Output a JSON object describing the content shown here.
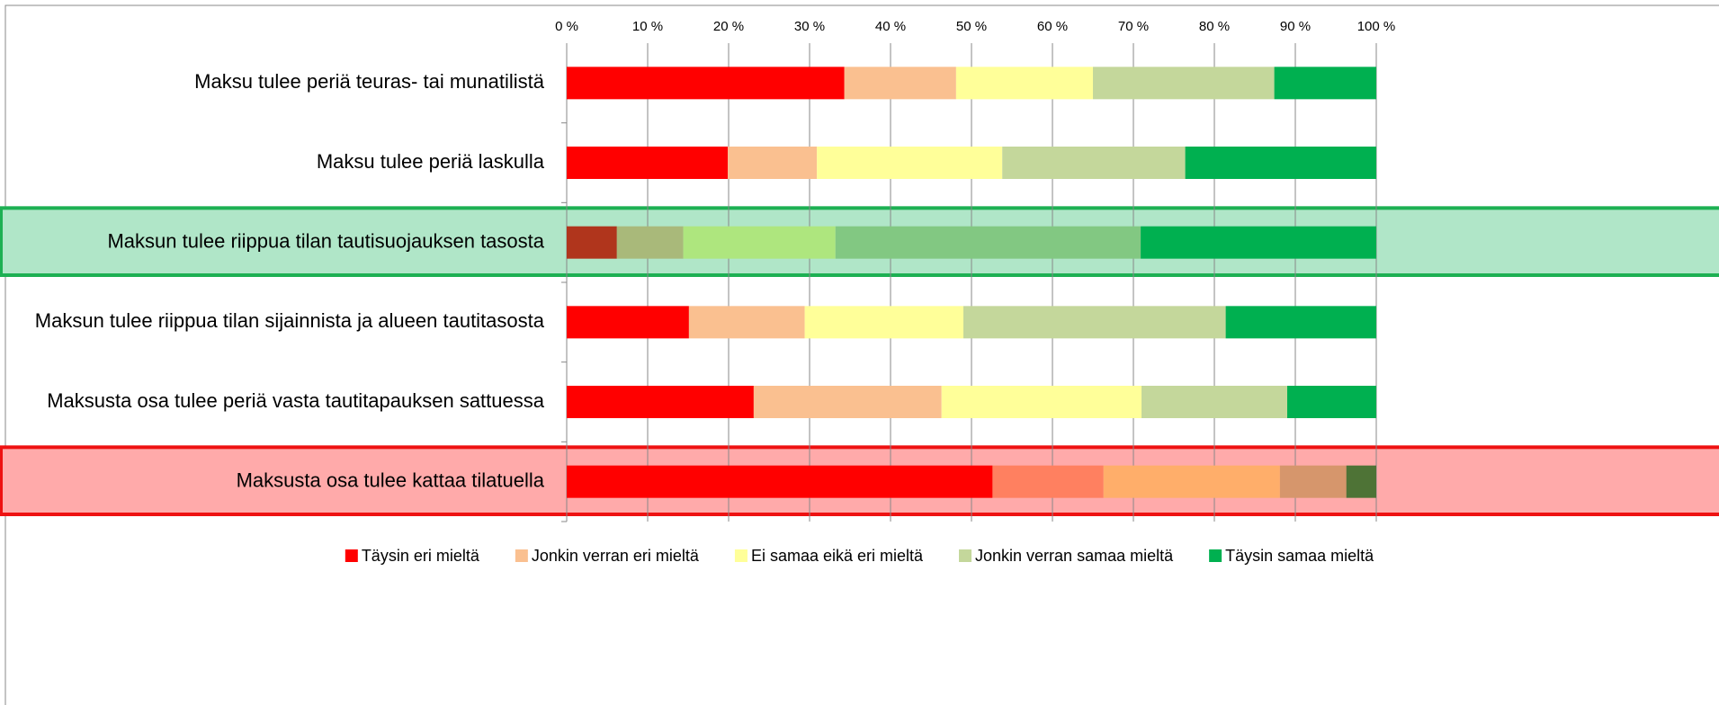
{
  "chart_data": {
    "type": "stacked-barh",
    "categories": [
      "Maksu tulee periä teuras- tai munatilistä",
      "Maksu tulee periä laskulla",
      "Maksun tulee riippua tilan tautisuojauksen tasosta",
      "Maksun tulee riippua tilan sijainnista ja alueen tautitasosta",
      "Maksusta osa tulee periä vasta tautitapauksen sattuessa",
      "Maksusta osa tulee kattaa tilatuella"
    ],
    "series": [
      {
        "name": "Täysin eri mieltä",
        "color": "#ff0000",
        "colors": [
          "#ff0000",
          "#ff0000",
          "#b0351c",
          "#ff0000",
          "#ff0000",
          "#ff0000"
        ],
        "values": [
          34.3,
          19.9,
          6.2,
          15.1,
          23.1,
          52.6
        ]
      },
      {
        "name": "Jonkin verran eri mieltä",
        "color": "#fac090",
        "colors": [
          "#fac090",
          "#fac090",
          "#a9b97a",
          "#fac090",
          "#fac090",
          "#ff8060"
        ],
        "values": [
          13.8,
          11,
          8.2,
          14.3,
          23.2,
          13.7
        ]
      },
      {
        "name": "Ei samaa eikä eri mieltä",
        "color": "#ffff99",
        "colors": [
          "#ffff99",
          "#ffff99",
          "#aee67e",
          "#ffff99",
          "#ffff99",
          "#ffae6a"
        ],
        "values": [
          16.9,
          22.9,
          18.8,
          19.6,
          24.7,
          21.8
        ]
      },
      {
        "name": "Jonkin verran samaa mieltä",
        "color": "#c4d79b",
        "colors": [
          "#c4d79b",
          "#c4d79b",
          "#82c882",
          "#c4d79b",
          "#c4d79b",
          "#d6966c"
        ],
        "values": [
          22.4,
          22.6,
          37.7,
          32.4,
          18,
          8.2
        ]
      },
      {
        "name": "Täysin samaa mieltä",
        "color": "#00b050",
        "colors": [
          "#00b050",
          "#00b050",
          "#00b050",
          "#00b050",
          "#00b050",
          "#4e7336"
        ],
        "values": [
          12.6,
          23.6,
          29.1,
          18.6,
          11,
          3.7
        ]
      }
    ],
    "highlight": [
      null,
      null,
      {
        "fill": "#b0e6c8",
        "stroke": "#1db053"
      },
      null,
      null,
      {
        "fill": "#ffaaaa",
        "stroke": "#ee1111"
      }
    ],
    "xlim": [
      0,
      100
    ],
    "xticks": [
      {
        "value": 0,
        "label": "0 %"
      },
      {
        "value": 10,
        "label": "10 %"
      },
      {
        "value": 20,
        "label": "20 %"
      },
      {
        "value": 30,
        "label": "30 %"
      },
      {
        "value": 40,
        "label": "40 %"
      },
      {
        "value": 50,
        "label": "50 %"
      },
      {
        "value": 60,
        "label": "60 %"
      },
      {
        "value": 70,
        "label": "70 %"
      },
      {
        "value": 80,
        "label": "80 %"
      },
      {
        "value": 90,
        "label": "90 %"
      },
      {
        "value": 100,
        "label": "100 %"
      }
    ],
    "grid": true,
    "legend": "bottom"
  }
}
